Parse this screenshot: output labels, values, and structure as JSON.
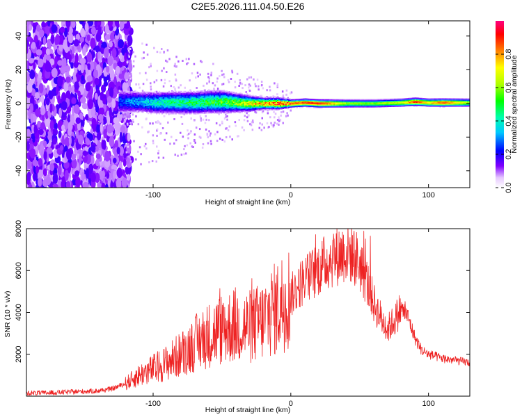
{
  "title": "C2E5.2026.111.04.50.E26",
  "chart_data": [
    {
      "type": "heatmap",
      "title": "C2E5.2026.111.04.50.E26",
      "xlabel": "Height of straight line (km)",
      "ylabel": "Frequency (Hz)",
      "xlim": [
        -192,
        130
      ],
      "ylim": [
        -50,
        49
      ],
      "xticks": [
        -100,
        0,
        100
      ],
      "xtick_labels": [
        "-100",
        "0",
        "100"
      ],
      "yticks": [
        -40,
        -20,
        0,
        20,
        40
      ],
      "ytick_labels": [
        "-40",
        "-20",
        "0",
        "20",
        "40"
      ],
      "colorbar": {
        "label": "Normalized spectral amplitude",
        "range": [
          0.0,
          1.0
        ],
        "ticks": [
          0.0,
          0.2,
          0.4,
          0.6,
          0.8
        ],
        "tick_labels": [
          "0.0",
          "0.2",
          "0.4",
          "0.6",
          "0.8"
        ]
      },
      "noise_region_x": [
        -192,
        -120
      ],
      "signal_band": {
        "x": [
          -125,
          -110,
          -100,
          -90,
          -80,
          -70,
          -60,
          -50,
          -40,
          -30,
          -20,
          -10,
          0,
          10,
          20,
          40,
          60,
          80,
          90,
          100,
          110,
          130
        ],
        "center_hz": [
          1,
          1,
          0.5,
          0.5,
          0.5,
          0.5,
          1,
          1,
          0.5,
          0,
          0,
          0,
          0,
          0.5,
          0,
          0,
          0,
          0.5,
          1,
          0.5,
          0.5,
          0.5
        ],
        "half_width_hz": [
          7,
          6,
          6,
          6,
          6,
          6,
          6,
          6,
          5,
          4,
          3,
          3,
          2,
          2,
          2,
          2,
          2,
          2,
          2,
          2,
          2,
          2
        ],
        "peak_amplitude": [
          0.25,
          0.32,
          0.38,
          0.42,
          0.45,
          0.47,
          0.5,
          0.52,
          0.58,
          0.68,
          0.78,
          0.85,
          0.88,
          0.9,
          0.95,
          0.62,
          0.6,
          0.68,
          0.92,
          0.75,
          0.9,
          0.62
        ]
      }
    },
    {
      "type": "line",
      "xlabel": "Height of straight line (km)",
      "ylabel": "SNR (10 * v/v)",
      "xlim": [
        -192,
        130
      ],
      "ylim": [
        0,
        8000
      ],
      "xticks": [
        -100,
        0,
        100
      ],
      "xtick_labels": [
        "-100",
        "0",
        "100"
      ],
      "yticks": [
        2000,
        4000,
        6000,
        8000
      ],
      "ytick_labels": [
        "2000",
        "4000",
        "6000",
        "8000"
      ],
      "color": "#ee2222",
      "series": [
        {
          "name": "SNR",
          "x": [
            -192,
            -180,
            -160,
            -140,
            -130,
            -120,
            -110,
            -100,
            -90,
            -80,
            -70,
            -60,
            -50,
            -40,
            -30,
            -20,
            -15,
            -10,
            -5,
            0,
            5,
            10,
            15,
            20,
            30,
            40,
            45,
            50,
            55,
            60,
            65,
            70,
            75,
            80,
            85,
            90,
            95,
            100,
            110,
            120,
            130
          ],
          "y": [
            150,
            150,
            200,
            250,
            350,
            600,
            1000,
            1300,
            1600,
            2000,
            2500,
            2900,
            3200,
            3400,
            3300,
            3600,
            4000,
            4200,
            4600,
            4800,
            5200,
            5600,
            5800,
            6100,
            6600,
            6900,
            6800,
            6300,
            5500,
            4500,
            3800,
            3200,
            3600,
            4200,
            3800,
            2800,
            2200,
            2000,
            1800,
            1700,
            1600
          ]
        }
      ]
    }
  ]
}
